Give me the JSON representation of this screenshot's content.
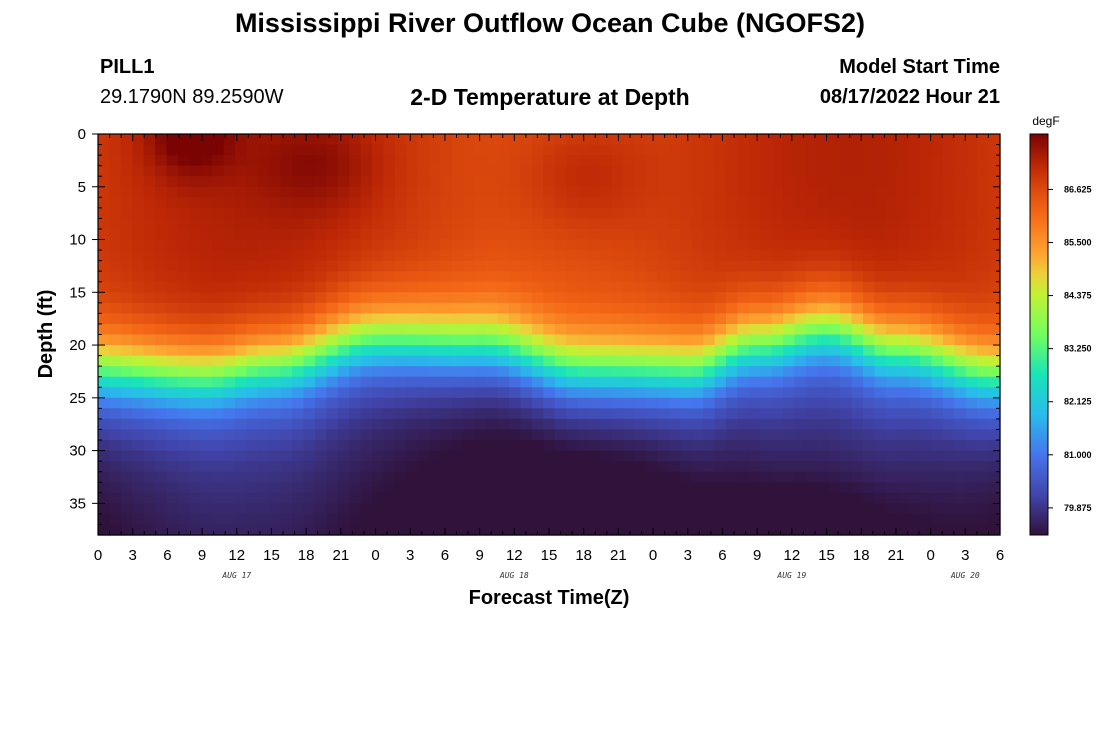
{
  "header": {
    "title": "Mississippi River Outflow Ocean Cube (NGOFS2)",
    "station_id": "PILL1",
    "coordinates": "29.1790N  89.2590W",
    "subtitle": "2-D Temperature at Depth",
    "model_start_label": "Model Start Time",
    "model_start_value": "08/17/2022 Hour 21"
  },
  "footer": {
    "title": "Mississippi River Outflow Ocean Cube (NGOFS2)"
  },
  "chart_data": {
    "type": "heatmap",
    "title": "2-D Temperature at Depth",
    "xlabel": "Forecast Time(Z)",
    "ylabel": "Depth (ft)",
    "x_tick_labels": [
      "0",
      "3",
      "6",
      "9",
      "12",
      "15",
      "18",
      "21",
      "0",
      "3",
      "6",
      "9",
      "12",
      "15",
      "18",
      "21",
      "0",
      "3",
      "6",
      "9",
      "12",
      "15",
      "18",
      "21",
      "0",
      "3",
      "6"
    ],
    "day_labels": [
      {
        "label": "AUG 17",
        "hour": 12
      },
      {
        "label": "AUG 18",
        "hour": 36
      },
      {
        "label": "AUG 19",
        "hour": 60
      },
      {
        "label": "AUG 20",
        "hour": 75
      }
    ],
    "xlim": [
      0,
      78
    ],
    "y_ticks": [
      0,
      5,
      10,
      15,
      20,
      25,
      30,
      35
    ],
    "ylim": [
      0,
      38
    ],
    "y_inverted": true,
    "colorbar": {
      "unit": "degF",
      "ticks": [
        "86.625",
        "85.500",
        "84.375",
        "83.250",
        "82.125",
        "81.000",
        "79.875"
      ],
      "range": [
        79.3,
        87.8
      ]
    },
    "thermocline_depth_ft": [
      {
        "hour": 0,
        "depth": 22.5
      },
      {
        "hour": 9,
        "depth": 23.0
      },
      {
        "hour": 15,
        "depth": 22.0
      },
      {
        "hour": 24,
        "depth": 19.5
      },
      {
        "hour": 33,
        "depth": 20.0
      },
      {
        "hour": 42,
        "depth": 22.5
      },
      {
        "hour": 51,
        "depth": 22.5
      },
      {
        "hour": 57,
        "depth": 20.0
      },
      {
        "hour": 63,
        "depth": 18.5
      },
      {
        "hour": 69,
        "depth": 20.5
      },
      {
        "hour": 78,
        "depth": 23.0
      }
    ],
    "surface_temperature_degF": 86.9,
    "bottom_temperature_degF": 79.6,
    "warm_core_max_degF": 87.8,
    "colors": {
      "hot": "#7a0403",
      "warm": "#f05b12",
      "mid": "#a4fc3b",
      "cool": "#28bceb",
      "cold": "#30123b"
    }
  }
}
